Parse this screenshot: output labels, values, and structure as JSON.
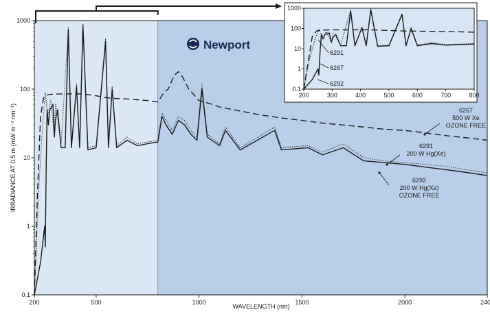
{
  "brand": {
    "logo_text": "Newport",
    "colors": {
      "light_region": "#dbe7f5",
      "dark_region": "#b9cfe9",
      "inset_bg": "#d8e5f4",
      "line": "#1a1a1a"
    }
  },
  "chart_data": [
    {
      "type": "line",
      "xlabel": "WAVELENGTH (nm)",
      "ylabel": "IRRADIANCE AT 0.5 m (mW m⁻² nm⁻¹)",
      "xlim": [
        200,
        2400
      ],
      "ylim": [
        0.1,
        1000
      ],
      "y_scale": "log",
      "x_ticks": [
        200,
        500,
        1000,
        1500,
        2000,
        2400
      ],
      "y_ticks": [
        0.1,
        1,
        10,
        100,
        1000
      ],
      "y_tick_labels": [
        "0.1",
        "1",
        "10",
        "100",
        "1000"
      ],
      "x_tick_labels": [
        "200",
        "500",
        "1000",
        "1500",
        "2000",
        "2400"
      ],
      "annotations": [
        {
          "lines": [
            "6267",
            "500 W Xe",
            "OZONE FREE"
          ]
        },
        {
          "lines": [
            "6291",
            "200 W Hg(Xe)"
          ]
        },
        {
          "lines": [
            "6292",
            "200 W Hg(Xe)",
            "OZONE FREE"
          ]
        }
      ],
      "series": [
        {
          "name": "6267",
          "style": "dashed",
          "x": [
            200,
            215,
            230,
            245,
            260,
            280,
            300,
            350,
            400,
            450,
            500,
            550,
            600,
            650,
            700,
            750,
            800,
            830,
            850,
            880,
            900,
            920,
            950,
            980,
            1000,
            1050,
            1100,
            1200,
            1300,
            1400,
            1500,
            1600,
            1700,
            1800,
            1900,
            2000,
            2100,
            2200,
            2300,
            2400
          ],
          "y": [
            0.1,
            3,
            40,
            75,
            82,
            84,
            85,
            85,
            86,
            84,
            80,
            75,
            73,
            72,
            70,
            68,
            65,
            90,
            100,
            160,
            180,
            150,
            100,
            80,
            68,
            62,
            55,
            48,
            42,
            38,
            35,
            32,
            30,
            28,
            26,
            25,
            23,
            21,
            19.5,
            18
          ]
        },
        {
          "name": "6291",
          "style": "dotted",
          "x": [
            200,
            220,
            240,
            253,
            265,
            280,
            297,
            303,
            313,
            330,
            365,
            380,
            405,
            420,
            436,
            460,
            500,
            546,
            560,
            578,
            600,
            650,
            700,
            750,
            800,
            820,
            840,
            870,
            900,
            930,
            960,
            990,
            1014,
            1040,
            1100,
            1128,
            1200,
            1367,
            1400,
            1529,
            1600,
            1700,
            1800,
            1900,
            2000,
            2100,
            2200,
            2300,
            2400
          ],
          "y": [
            0.1,
            3,
            30,
            90,
            40,
            70,
            20,
            60,
            40,
            15,
            800,
            15,
            120,
            15,
            900,
            14,
            15,
            550,
            15,
            110,
            15,
            20,
            16,
            17,
            18,
            45,
            35,
            25,
            40,
            35,
            25,
            20,
            120,
            22,
            16,
            28,
            14,
            28,
            14,
            15,
            12,
            16,
            10,
            9,
            8.5,
            8,
            7.5,
            6.7,
            6
          ]
        },
        {
          "name": "6292",
          "style": "solid",
          "x": [
            200,
            230,
            250,
            253,
            258,
            262,
            268,
            275,
            290,
            297,
            302,
            313,
            330,
            350,
            365,
            380,
            405,
            420,
            436,
            460,
            500,
            546,
            560,
            578,
            600,
            650,
            700,
            750,
            800,
            820,
            840,
            870,
            900,
            930,
            960,
            990,
            1014,
            1040,
            1100,
            1128,
            1200,
            1367,
            1400,
            1529,
            1600,
            1700,
            1800,
            1900,
            2000,
            2100,
            2200,
            2300,
            2400
          ],
          "y": [
            0.1,
            0.3,
            1,
            0.5,
            10,
            50,
            30,
            50,
            60,
            20,
            35,
            50,
            14,
            14,
            750,
            14,
            110,
            14,
            850,
            13,
            14,
            500,
            14,
            100,
            14,
            18,
            15,
            16,
            17,
            40,
            30,
            22,
            35,
            30,
            22,
            18,
            100,
            20,
            15,
            25,
            13,
            25,
            13,
            14,
            11,
            14,
            9,
            8.5,
            8,
            7.3,
            6.7,
            6.1,
            5.5
          ]
        }
      ]
    },
    {
      "type": "line",
      "xlabel": "",
      "ylabel": "",
      "xlim": [
        200,
        800
      ],
      "ylim": [
        0.1,
        1000
      ],
      "y_scale": "log",
      "x_ticks": [
        200,
        300,
        400,
        500,
        600,
        700,
        800
      ],
      "x_tick_labels": [
        "200",
        "300",
        "400",
        "500",
        "600",
        "700",
        "800"
      ],
      "y_ticks": [
        0.1,
        1,
        10,
        100,
        1000
      ],
      "y_tick_labels": [
        "0.1",
        "1",
        "10",
        "100",
        "1000"
      ],
      "labels": [
        "6291",
        "6267",
        "6292"
      ],
      "series": [
        {
          "name": "6267",
          "style": "dashed",
          "x": [
            200,
            230,
            245,
            260,
            280,
            300,
            350,
            400,
            450,
            500,
            550,
            600,
            650,
            700,
            750,
            800
          ],
          "y": [
            0.1,
            40,
            75,
            82,
            84,
            85,
            85,
            86,
            84,
            80,
            75,
            73,
            72,
            70,
            68,
            65
          ]
        },
        {
          "name": "6291",
          "style": "dotted",
          "x": [
            200,
            220,
            240,
            253,
            265,
            280,
            297,
            303,
            313,
            330,
            365,
            380,
            405,
            420,
            436,
            460,
            500,
            546,
            560,
            578,
            600,
            650,
            700,
            750,
            800
          ],
          "y": [
            0.1,
            3,
            30,
            90,
            40,
            70,
            20,
            60,
            40,
            15,
            800,
            15,
            120,
            15,
            900,
            14,
            15,
            550,
            15,
            110,
            15,
            20,
            16,
            17,
            18
          ]
        },
        {
          "name": "6292",
          "style": "solid",
          "x": [
            200,
            230,
            250,
            253,
            258,
            262,
            268,
            275,
            290,
            297,
            302,
            313,
            330,
            350,
            365,
            380,
            405,
            420,
            436,
            460,
            500,
            546,
            560,
            578,
            600,
            650,
            700,
            750,
            800
          ],
          "y": [
            0.1,
            0.3,
            1,
            0.5,
            10,
            50,
            30,
            50,
            60,
            20,
            35,
            50,
            14,
            14,
            750,
            14,
            110,
            14,
            850,
            13,
            14,
            500,
            14,
            100,
            14,
            18,
            15,
            16,
            17
          ]
        }
      ]
    }
  ]
}
